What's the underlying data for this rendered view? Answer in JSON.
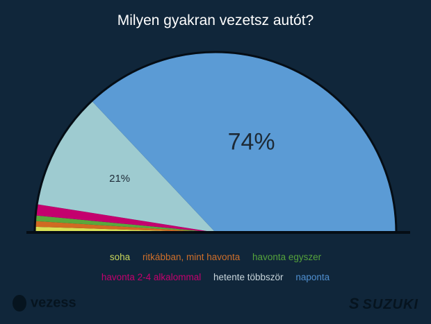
{
  "chart_data": {
    "type": "pie",
    "shape": "semicircle",
    "title": "Milyen gyakran vezetsz autót?",
    "categories": [
      "soha",
      "ritkábban, mint havonta",
      "havonta egyszer",
      "havonta 2-4 alkalommal",
      "hetente többször",
      "naponta"
    ],
    "values": [
      1,
      1,
      1,
      2,
      21,
      74
    ],
    "colors": [
      "#d8e055",
      "#d06b22",
      "#5aa83c",
      "#c4006e",
      "#9ecbd0",
      "#5b9bd5"
    ],
    "legend_colors": [
      "#c9d65a",
      "#cf6f2a",
      "#55a33c",
      "#c4006e",
      "#c9d6dc",
      "#4f8fcf"
    ],
    "data_labels": {
      "4": "21%",
      "5": "74%"
    },
    "legend_placement": "bottom"
  },
  "logos": {
    "left": "vezess",
    "right": "SUZUKI"
  }
}
